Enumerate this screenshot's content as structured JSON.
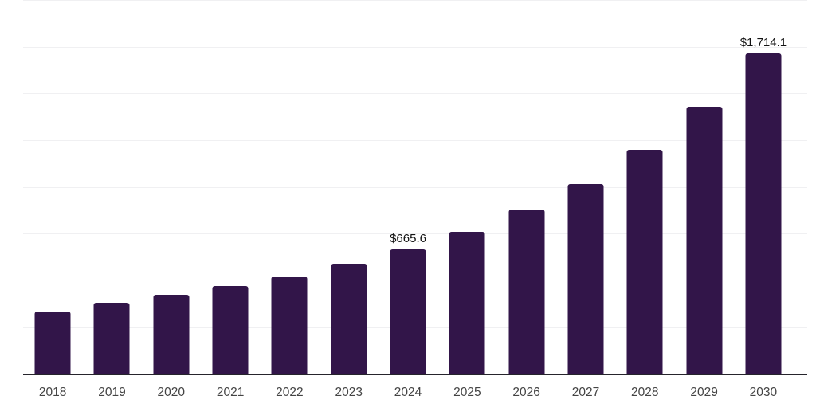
{
  "chart_data": {
    "type": "bar",
    "title": "",
    "xlabel": "",
    "ylabel": "",
    "categories": [
      "2018",
      "2019",
      "2020",
      "2021",
      "2022",
      "2023",
      "2024",
      "2025",
      "2026",
      "2027",
      "2028",
      "2029",
      "2030"
    ],
    "values": [
      334,
      378,
      423,
      470,
      521,
      589,
      665.6,
      760,
      879,
      1015,
      1199,
      1429,
      1714.1
    ],
    "data_labels": {
      "2024": "$665.6",
      "2030": "$1,714.1"
    },
    "ylim": [
      0,
      2000
    ],
    "grid_step": 250,
    "grid_on": true,
    "legend": "none",
    "y_axis_tick_labels_visible": false,
    "colors": {
      "bar": "#321549",
      "axis_line": "#26242c",
      "grid_line": "#f0f0f2",
      "x_tick_label": "#444444",
      "data_label": "#131313",
      "background": "#ffffff"
    }
  }
}
